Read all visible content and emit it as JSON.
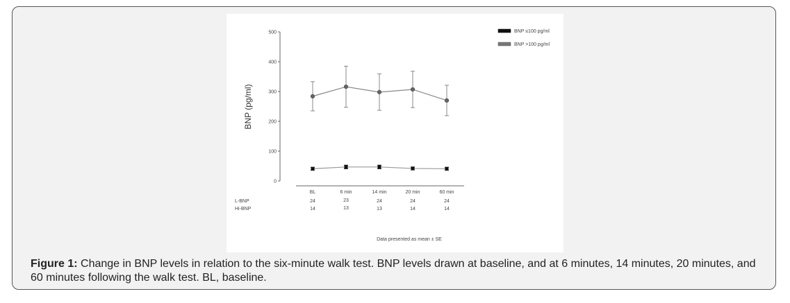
{
  "figure": {
    "caption_label": "Figure 1:",
    "caption_text": " Change in BNP levels in relation to the six-minute walk test. BNP levels drawn at baseline, and at 6 minutes, 14 minutes, 20 minutes, and 60 minutes following the walk test. BL, baseline.",
    "footnote": "Data presented as mean ± SE"
  },
  "chart_data": {
    "type": "line",
    "title": "",
    "xlabel": "",
    "ylabel": "BNP (pg/ml)",
    "ylim": [
      0,
      500
    ],
    "yticks": [
      0,
      100,
      200,
      300,
      400,
      500
    ],
    "categories": [
      "BL",
      "6 min",
      "14 min",
      "20 min",
      "60 min"
    ],
    "grid": false,
    "legend_position": "top-right",
    "series": [
      {
        "name": "BNP ≤100 pg/ml",
        "color": "#111111",
        "marker": "square",
        "values": [
          41,
          47,
          47,
          42,
          41
        ],
        "se": [
          5,
          6,
          6,
          5,
          5
        ],
        "n_label": "L-BNP",
        "n": [
          24,
          23,
          24,
          24,
          24
        ]
      },
      {
        "name": "BNP >100 pg/ml",
        "color": "#777777",
        "marker": "circle",
        "values": [
          284,
          316,
          298,
          307,
          270
        ],
        "se": [
          49,
          69,
          61,
          61,
          51
        ],
        "n_label": "Hi-BNP",
        "n": [
          14,
          13,
          13,
          14,
          14
        ]
      }
    ]
  }
}
